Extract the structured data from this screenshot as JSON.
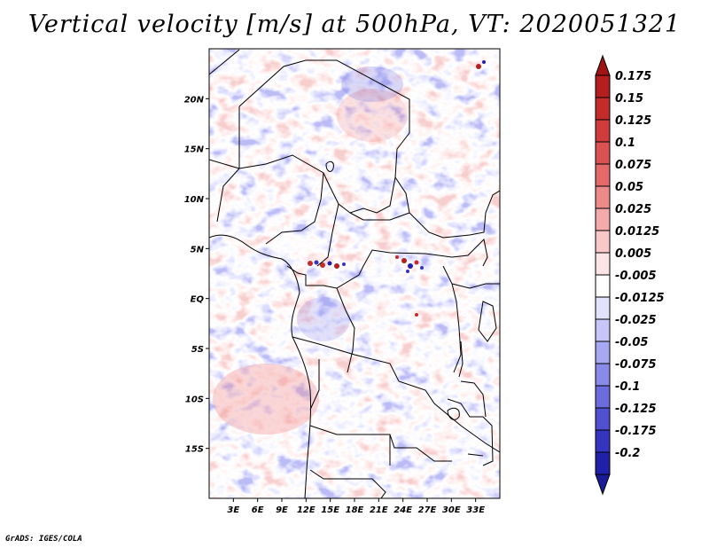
{
  "title": "Vertical velocity [m/s] at 500hPa, VT: 2020051321",
  "credit": "GrADS: IGES/COLA",
  "map": {
    "lon_range": [
      0,
      36
    ],
    "lat_range": [
      -20,
      25
    ],
    "lat_ticks": [
      {
        "value": 20,
        "label": "20N"
      },
      {
        "value": 15,
        "label": "15N"
      },
      {
        "value": 10,
        "label": "10N"
      },
      {
        "value": 5,
        "label": "5N"
      },
      {
        "value": 0,
        "label": "EQ"
      },
      {
        "value": -5,
        "label": "5S"
      },
      {
        "value": -10,
        "label": "10S"
      },
      {
        "value": -15,
        "label": "15S"
      }
    ],
    "lon_ticks": [
      {
        "value": 3,
        "label": "3E"
      },
      {
        "value": 6,
        "label": "6E"
      },
      {
        "value": 9,
        "label": "9E"
      },
      {
        "value": 12,
        "label": "12E"
      },
      {
        "value": 15,
        "label": "15E"
      },
      {
        "value": 18,
        "label": "18E"
      },
      {
        "value": 21,
        "label": "21E"
      },
      {
        "value": 24,
        "label": "24E"
      },
      {
        "value": 27,
        "label": "27E"
      },
      {
        "value": 30,
        "label": "30E"
      },
      {
        "value": 33,
        "label": "33E"
      }
    ]
  },
  "colorbar": {
    "levels": [
      {
        "label": "0.175",
        "color": "#b41e1e"
      },
      {
        "label": "0.15",
        "color": "#c42c2c"
      },
      {
        "label": "0.125",
        "color": "#d03c3c"
      },
      {
        "label": "0.1",
        "color": "#dc5252"
      },
      {
        "label": "0.075",
        "color": "#e46a6a"
      },
      {
        "label": "0.05",
        "color": "#ec8a8a"
      },
      {
        "label": "0.025",
        "color": "#f4aaaa"
      },
      {
        "label": "0.0125",
        "color": "#f8c8c8"
      },
      {
        "label": "0.005",
        "color": "#fce4e4"
      },
      {
        "label": "-0.005",
        "color": "#ffffff"
      },
      {
        "label": "-0.0125",
        "color": "#e2e2fc"
      },
      {
        "label": "-0.025",
        "color": "#c6c6f8"
      },
      {
        "label": "-0.05",
        "color": "#a8a8f2"
      },
      {
        "label": "-0.075",
        "color": "#8a8aea"
      },
      {
        "label": "-0.1",
        "color": "#6c6cde"
      },
      {
        "label": "-0.125",
        "color": "#5050d0"
      },
      {
        "label": "-0.175",
        "color": "#3434c0"
      },
      {
        "label": "-0.2",
        "color": "#2020a8"
      }
    ],
    "top_arrow_color": "#a01414",
    "bottom_arrow_color": "#1a1a96"
  }
}
